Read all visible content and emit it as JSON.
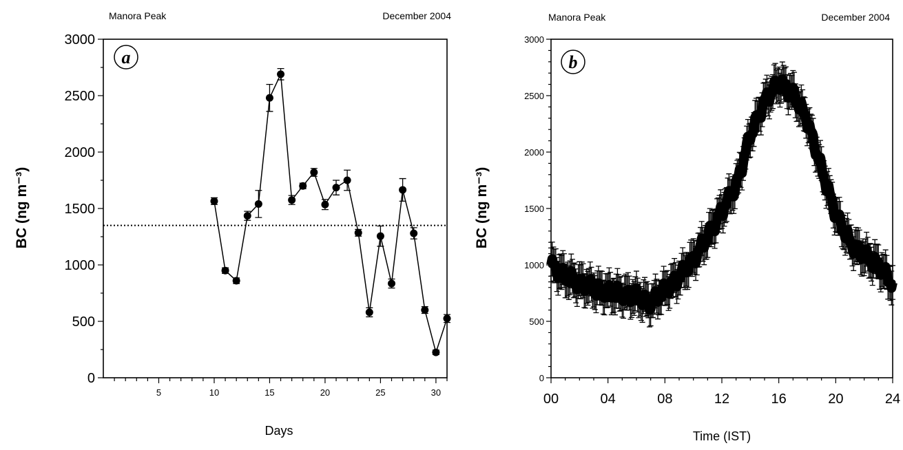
{
  "chart_data": [
    {
      "id": "a",
      "type": "line",
      "panel_label": "a",
      "site": "Manora Peak",
      "period": "December 2004",
      "xlabel": "Days",
      "ylabel": "BC (ng m⁻³)",
      "xlim": [
        0,
        31
      ],
      "ylim": [
        0,
        3000
      ],
      "x_ticks": [
        5,
        10,
        15,
        20,
        25,
        30
      ],
      "y_ticks": [
        0,
        500,
        1000,
        1500,
        2000,
        2500,
        3000
      ],
      "mean_line": 1350,
      "points": [
        {
          "x": 10,
          "y": 1565,
          "err": 30
        },
        {
          "x": 11,
          "y": 950,
          "err": 25
        },
        {
          "x": 12,
          "y": 860,
          "err": 25
        },
        {
          "x": 13,
          "y": 1435,
          "err": 40
        },
        {
          "x": 14,
          "y": 1540,
          "err": 120
        },
        {
          "x": 15,
          "y": 2480,
          "err": 120
        },
        {
          "x": 16,
          "y": 2690,
          "err": 50
        },
        {
          "x": 17,
          "y": 1575,
          "err": 40
        },
        {
          "x": 18,
          "y": 1700,
          "err": 25
        },
        {
          "x": 19,
          "y": 1820,
          "err": 35
        },
        {
          "x": 20,
          "y": 1535,
          "err": 45
        },
        {
          "x": 21,
          "y": 1685,
          "err": 65
        },
        {
          "x": 22,
          "y": 1750,
          "err": 90
        },
        {
          "x": 23,
          "y": 1285,
          "err": 30
        },
        {
          "x": 24,
          "y": 580,
          "err": 40
        },
        {
          "x": 25,
          "y": 1255,
          "err": 90
        },
        {
          "x": 26,
          "y": 835,
          "err": 40
        },
        {
          "x": 27,
          "y": 1665,
          "err": 100
        },
        {
          "x": 28,
          "y": 1280,
          "err": 50
        },
        {
          "x": 29,
          "y": 600,
          "err": 30
        },
        {
          "x": 30,
          "y": 225,
          "err": 20
        },
        {
          "x": 31,
          "y": 525,
          "err": 35
        }
      ]
    },
    {
      "id": "b",
      "type": "line",
      "panel_label": "b",
      "site": "Manora Peak",
      "period": "December 2004",
      "xlabel": "Time (IST)",
      "ylabel": "BC (ng m⁻³)",
      "xlim": [
        0,
        24
      ],
      "ylim": [
        0,
        3000
      ],
      "x_ticks": [
        "00",
        "04",
        "08",
        "12",
        "16",
        "20",
        "24"
      ],
      "y_ticks": [
        0,
        500,
        1000,
        1500,
        2000,
        2500,
        3000
      ],
      "err": 150,
      "x_hours": [
        0,
        1,
        2,
        3,
        4,
        5,
        6,
        7,
        8,
        9,
        10,
        11,
        12,
        13,
        14,
        15,
        16,
        17,
        18,
        19,
        20,
        21,
        22,
        23,
        24
      ],
      "y_values": [
        1000,
        900,
        840,
        790,
        760,
        740,
        720,
        660,
        780,
        890,
        1050,
        1250,
        1480,
        1700,
        2150,
        2450,
        2620,
        2520,
        2280,
        1850,
        1450,
        1200,
        1080,
        1000,
        830
      ]
    }
  ]
}
